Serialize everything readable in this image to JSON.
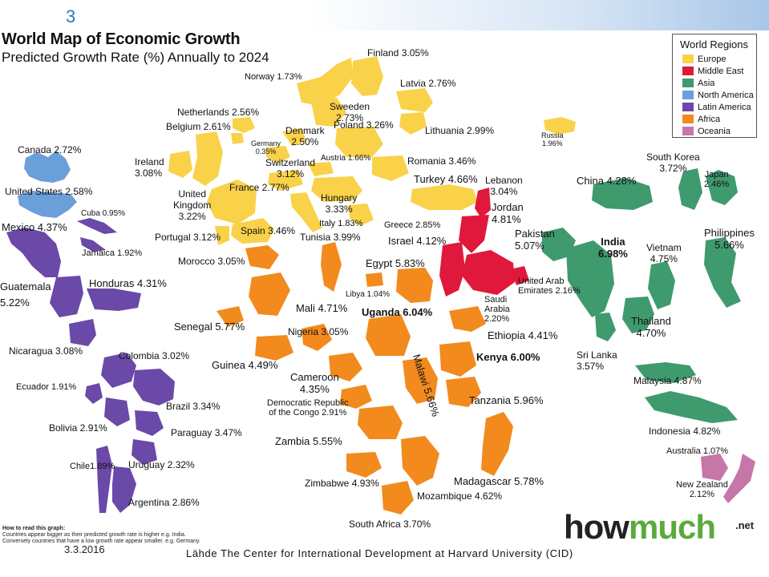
{
  "slide_number": "3",
  "title": "World Map of Economic Growth",
  "subtitle": "Predicted Growth Rate (%) Annually to 2024",
  "legend": {
    "title": "World Regions",
    "items": [
      {
        "name": "Europe",
        "color": "#f9d24a"
      },
      {
        "name": "Middle East",
        "color": "#e0183c"
      },
      {
        "name": "Asia",
        "color": "#3f9a6e"
      },
      {
        "name": "North America",
        "color": "#6b9fda"
      },
      {
        "name": "Latin America",
        "color": "#6a49a8"
      },
      {
        "name": "Africa",
        "color": "#f28a1e"
      },
      {
        "name": "Oceania",
        "color": "#c776a8"
      }
    ]
  },
  "labels": {
    "finland": "Finland  3.05%",
    "norway": "Norway 1.73%",
    "latvia": "Latvia  2.76%",
    "netherlands": "Netherlands 2.56%",
    "belgium": "Belgium 2.61%",
    "sweden": "Sweeden\n2.73%",
    "poland": "Poland 3.26%",
    "lithuania": "Lithuania 2.99%",
    "denmark": "Denmark\n2.50%",
    "germany": "Germany\n0.35%",
    "russia": "Russia\n1.96%",
    "canada": "Canada 2.72%",
    "ireland": "Ireland\n3.08%",
    "switzerland": "Switzerland\n3.12%",
    "austria": "Austria 1.66%",
    "romania": "Romania 3.46%",
    "south_korea": "South Korea\n3.72%",
    "united_states": "United States 2.58%",
    "united_kingdom": "United\nKingdom\n3.22%",
    "france": "France 2.77%",
    "turkey": "Turkey 4.66%",
    "lebanon": "Lebanon\n3.04%",
    "china": "China 4.28%",
    "japan": "Japan\n2.46%",
    "hungary": "Hungary\n3.33%",
    "jordan": "Jordan\n4.81%",
    "cuba": "Cuba 0.95%",
    "mexico": "Mexico 4.37%",
    "italy": "Italy 1.83%",
    "greece": "Greece 2.85%",
    "spain": "Spain 3.46%",
    "tunisia": "Tunisia 3.99%",
    "portugal": "Portugal 3.12%",
    "israel": "Israel 4.12%",
    "pakistan": "Pakistan\n5.07%",
    "philippines": "Philippines\n5.66%",
    "india": "India\n6.98%",
    "vietnam": "Vietnam\n4.75%",
    "jamaica": "Jamaica 1.92%",
    "morocco": "Morocco 3.05%",
    "egypt": "Egypt 5.83%",
    "guatemala": "Guatemala\n5.22%",
    "honduras": "Honduras  4.31%",
    "libya": "Libya 1.04%",
    "uae": "United Arab\nEmirates 2.16%",
    "mali": "Mali 4.71%",
    "uganda": "Uganda 6.04%",
    "saudi": "Saudi\nArabia\n2.20%",
    "thailand": "Thailand\n4.70%",
    "senegal": "Senegal 5.77%",
    "nigeria": "Nigeria  3.05%",
    "ethiopia": "Ethiopia 4.41%",
    "nicaragua": "Nicaragua 3.08%",
    "colombia": "Colombia 3.02%",
    "guinea": "Guinea 4.49%",
    "kenya": "Kenya 6.00%",
    "sri_lanka": "Sri Lanka\n3.57%",
    "cameroon": "Cameroon\n4.35%",
    "malaysia": "Malaysia 4.87%",
    "malawi": "Malawi 5.66%",
    "ecuador": "Ecuador 1.91%",
    "brazil": "Brazil 3.34%",
    "tanzania": "Tanzania 5.96%",
    "drc": "Democratic Republic\nof the Congo 2.91%",
    "bolivia": "Bolivia 2.91%",
    "paraguay": "Paraguay 3.47%",
    "indonesia": "Indonesia 4.82%",
    "zambia": "Zambia 5.55%",
    "australia": "Australia 1.07%",
    "chile": "Chile1.89%",
    "uruguay": "Uruguay 2.32%",
    "madagascar": "Madagascar  5.78%",
    "zimbabwe": "Zimbabwe 4.93%",
    "new_zealand": "New Zealand\n2.12%",
    "mozambique": "Mozambique  4.62%",
    "argentina": "Argentina 2.86%",
    "south_africa": "South Africa 3.70%"
  },
  "how_to_read": {
    "heading": "How to read this graph:",
    "line1": "Countries appear bigger as their predicted growth rate is higher e.g. India.",
    "line2": "Conversely countries that have a low growth rate appear smaller. e.g. Germany."
  },
  "date": "3.3.2016",
  "credit": "Lähde The Center for International Development at Harvard University (CID)",
  "logo": {
    "part1": "how",
    "part2": "much",
    "suffix": ".net"
  }
}
